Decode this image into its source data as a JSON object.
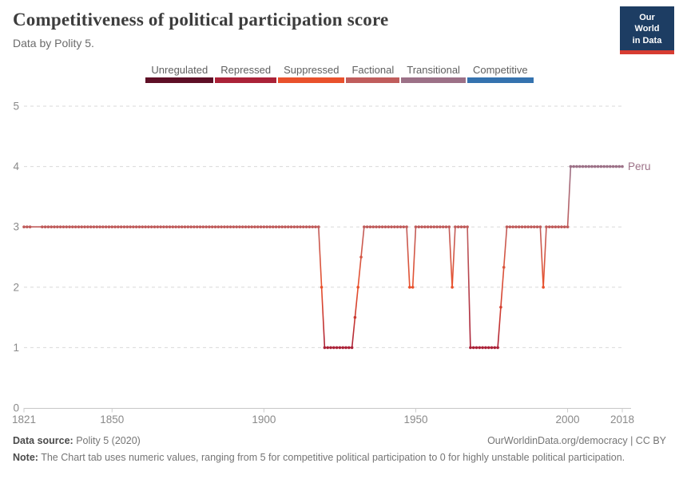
{
  "header": {
    "title": "Competitiveness of political participation score",
    "subtitle": "Data by Polity 5.",
    "logo": {
      "line1": "Our World",
      "line2": "in Data",
      "bg": "#1d3d63",
      "accent": "#d73c32"
    }
  },
  "chart_data": {
    "type": "line",
    "title": "Competitiveness of political participation score",
    "entity": "Peru",
    "end_label": "Peru",
    "xlim": [
      1821,
      2018
    ],
    "ylim": [
      0,
      5
    ],
    "x_ticks": [
      1821,
      1850,
      1900,
      1950,
      2000,
      2018
    ],
    "y_ticks": [
      0,
      1,
      2,
      3,
      4,
      5
    ],
    "grid": "dashed horizontal gridlines",
    "legend_position": "top center",
    "categories": [
      {
        "value": 0,
        "label": "Unregulated",
        "color": "#5E0F26"
      },
      {
        "value": 1,
        "label": "Repressed",
        "color": "#AB2238"
      },
      {
        "value": 2,
        "label": "Suppressed",
        "color": "#E9512C"
      },
      {
        "value": 3,
        "label": "Factional",
        "color": "#C05D5C"
      },
      {
        "value": 4,
        "label": "Transitional",
        "color": "#9C7187"
      },
      {
        "value": 5,
        "label": "Competitive",
        "color": "#3573AF"
      }
    ],
    "runs": [
      {
        "start": 1821,
        "end": 1918,
        "value": 3
      },
      {
        "start": 1919,
        "end": 1919,
        "value": 2,
        "interpolated": true
      },
      {
        "start": 1920,
        "end": 1929,
        "value": 1
      },
      {
        "start": 1930,
        "end": 1930,
        "value": 1.5,
        "interpolated": true
      },
      {
        "start": 1931,
        "end": 1931,
        "value": 2,
        "interpolated": true
      },
      {
        "start": 1932,
        "end": 1932,
        "value": 2.5,
        "interpolated": true
      },
      {
        "start": 1933,
        "end": 1947,
        "value": 3
      },
      {
        "start": 1948,
        "end": 1949,
        "value": 2
      },
      {
        "start": 1950,
        "end": 1961,
        "value": 3
      },
      {
        "start": 1962,
        "end": 1962,
        "value": 2
      },
      {
        "start": 1963,
        "end": 1967,
        "value": 3
      },
      {
        "start": 1968,
        "end": 1977,
        "value": 1
      },
      {
        "start": 1978,
        "end": 1978,
        "value": 1.67,
        "interpolated": true
      },
      {
        "start": 1979,
        "end": 1979,
        "value": 2.33,
        "interpolated": true
      },
      {
        "start": 1980,
        "end": 1991,
        "value": 3
      },
      {
        "start": 1992,
        "end": 1992,
        "value": 2
      },
      {
        "start": 1993,
        "end": 2000,
        "value": 3
      },
      {
        "start": 2001,
        "end": 2018,
        "value": 4
      }
    ],
    "markers_hidden_years": [
      1824,
      1825,
      1826
    ]
  },
  "footer": {
    "datasource_label": "Data source:",
    "datasource_value": "Polity 5 (2020)",
    "license": "OurWorldinData.org/democracy | CC BY",
    "note_label": "Note:",
    "note_text": "The Chart tab uses numeric values, ranging from 5 for competitive political participation to 0 for highly unstable political participation."
  }
}
